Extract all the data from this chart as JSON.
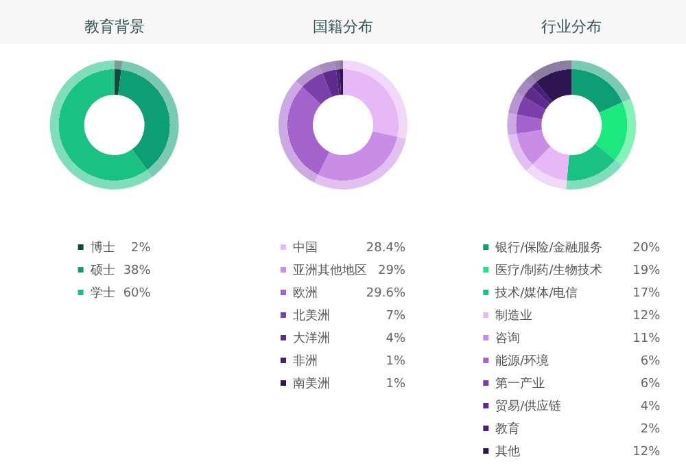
{
  "chart_data": [
    {
      "type": "donut",
      "title": "教育背景",
      "legend": "bottom",
      "categories": [
        "博士",
        "硕士",
        "学士"
      ],
      "values": [
        2,
        38,
        60
      ],
      "value_labels": [
        "2%",
        "38%",
        "60%"
      ],
      "colors": [
        "#0f4a3c",
        "#0e9e74",
        "#19c283"
      ]
    },
    {
      "type": "donut",
      "title": "国籍分布",
      "legend": "bottom",
      "categories": [
        "中国",
        "亚洲其他地区",
        "欧洲",
        "北美洲",
        "大洋洲",
        "非洲",
        "南美洲"
      ],
      "values": [
        28.4,
        29,
        29.6,
        7,
        4,
        1,
        1
      ],
      "value_labels": [
        "28.4%",
        "29%",
        "29.6%",
        "7%",
        "4%",
        "1%",
        "1%"
      ],
      "colors": [
        "#e6b8f5",
        "#c98de6",
        "#a463cc",
        "#7a3fa8",
        "#5e2a8c",
        "#4a1f78",
        "#2e1450"
      ]
    },
    {
      "type": "donut",
      "title": "行业分布",
      "legend": "bottom",
      "categories": [
        "银行/保险/金融服务",
        "医疗/制药/生物技术",
        "技术/媒体/电信",
        "制造业",
        "咨询",
        "能源/环境",
        "第一产业",
        "贸易/供应链",
        "教育",
        "其他"
      ],
      "values": [
        20,
        19,
        17,
        12,
        11,
        6,
        6,
        4,
        2,
        12
      ],
      "value_labels": [
        "20%",
        "19%",
        "17%",
        "12%",
        "11%",
        "6%",
        "6%",
        "4%",
        "2%",
        "12%"
      ],
      "colors": [
        "#0e9e74",
        "#1de87f",
        "#19c283",
        "#e6b8f5",
        "#c98de6",
        "#a463cc",
        "#7a3fa8",
        "#5e2a8c",
        "#4a1f78",
        "#2e1450"
      ]
    }
  ]
}
